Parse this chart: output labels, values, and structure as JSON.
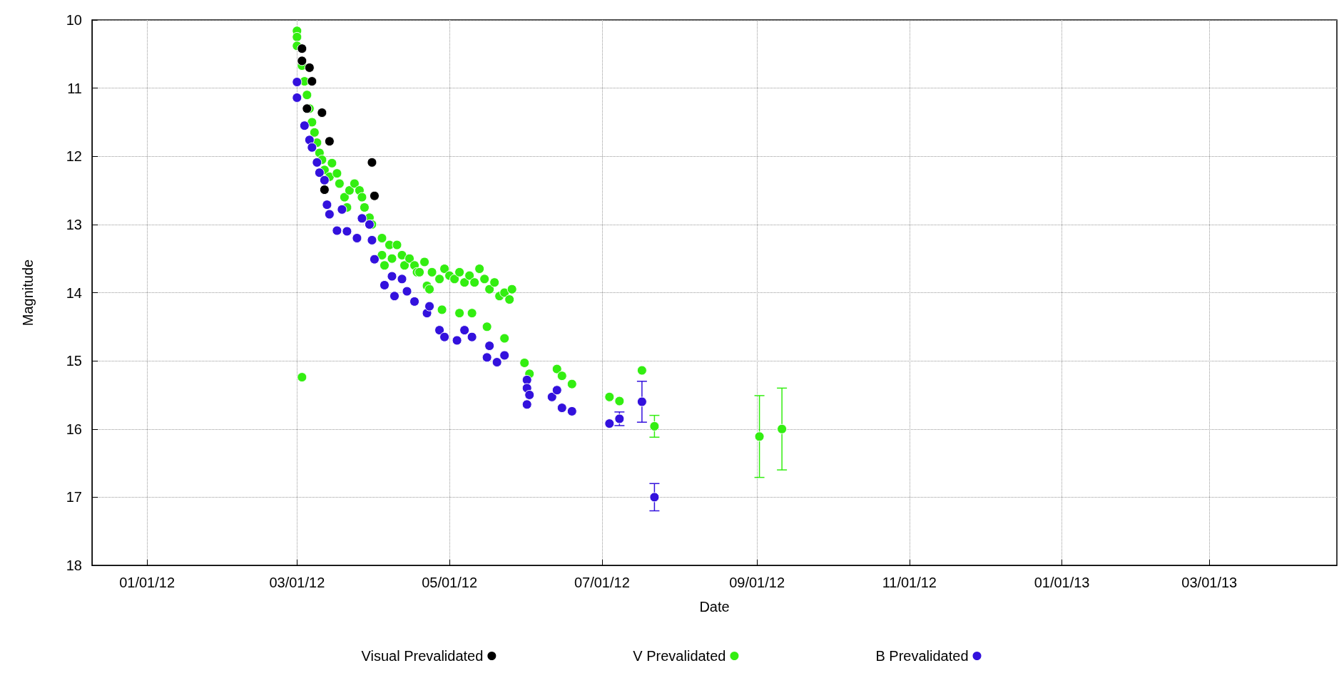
{
  "chart_data": {
    "type": "scatter",
    "xlabel": "Date",
    "ylabel": "Magnitude",
    "xlim": [
      "2011-12-10",
      "2013-04-21"
    ],
    "xticks": [
      {
        "value": "2012-01-01",
        "label": "01/01/12"
      },
      {
        "value": "2012-03-01",
        "label": "03/01/12"
      },
      {
        "value": "2012-05-01",
        "label": "05/01/12"
      },
      {
        "value": "2012-07-01",
        "label": "07/01/12"
      },
      {
        "value": "2012-09-01",
        "label": "09/01/12"
      },
      {
        "value": "2012-11-01",
        "label": "11/01/12"
      },
      {
        "value": "2013-01-01",
        "label": "01/01/13"
      },
      {
        "value": "2013-03-01",
        "label": "03/01/13"
      }
    ],
    "ylim": [
      18,
      10
    ],
    "yticks": [
      10,
      11,
      12,
      13,
      14,
      15,
      16,
      17,
      18
    ],
    "grid": true,
    "legend": "bottom",
    "marker": "circle",
    "series": [
      {
        "name": "Visual Prevalidated",
        "color": "#000000",
        "x": [
          "2012-03-03",
          "2012-03-03",
          "2012-03-06",
          "2012-03-07",
          "2012-03-05",
          "2012-03-11",
          "2012-03-14",
          "2012-03-12",
          "2012-03-30",
          "2012-03-31",
          "2012-04-01"
        ],
        "values": [
          10.42,
          10.6,
          10.7,
          10.9,
          11.3,
          11.36,
          11.78,
          12.49,
          null,
          12.09,
          12.58
        ]
      },
      {
        "name": "V Prevalidated",
        "color": "#33ee11",
        "x": [
          "2012-03-01",
          "2012-03-01",
          "2012-03-01",
          "2012-03-03",
          "2012-03-04",
          "2012-03-05",
          "2012-03-06",
          "2012-03-07",
          "2012-03-08",
          "2012-03-09",
          "2012-03-10",
          "2012-03-11",
          "2012-03-12",
          "2012-03-14",
          "2012-03-15",
          "2012-03-17",
          "2012-03-18",
          "2012-03-20",
          "2012-03-21",
          "2012-03-22",
          "2012-03-24",
          "2012-03-26",
          "2012-03-27",
          "2012-03-28",
          "2012-03-30",
          "2012-03-31",
          "2012-04-04",
          "2012-04-04",
          "2012-04-05",
          "2012-04-07",
          "2012-04-08",
          "2012-04-10",
          "2012-04-12",
          "2012-04-13",
          "2012-04-15",
          "2012-04-17",
          "2012-04-18",
          "2012-04-19",
          "2012-04-21",
          "2012-04-22",
          "2012-04-23",
          "2012-04-24",
          "2012-04-27",
          "2012-04-29",
          "2012-05-01",
          "2012-05-03",
          "2012-05-05",
          "2012-05-07",
          "2012-05-09",
          "2012-05-11",
          "2012-05-13",
          "2012-05-15",
          "2012-05-17",
          "2012-05-19",
          "2012-05-21",
          "2012-05-23",
          "2012-05-25",
          "2012-05-26",
          "2012-04-28",
          "2012-05-05",
          "2012-05-10",
          "2012-05-16",
          "2012-05-23",
          "2012-05-31",
          "2012-06-02",
          "2012-06-13",
          "2012-06-15",
          "2012-06-19",
          "2012-07-04",
          "2012-07-08",
          "2012-07-17",
          "2012-07-22",
          "2012-09-02",
          "2012-09-11",
          "2012-03-03"
        ],
        "values": [
          10.16,
          10.25,
          10.38,
          10.67,
          10.9,
          11.1,
          11.3,
          11.5,
          11.65,
          11.8,
          11.95,
          12.05,
          12.2,
          12.3,
          12.1,
          12.25,
          12.4,
          12.6,
          12.75,
          12.5,
          12.4,
          12.5,
          12.6,
          12.75,
          12.9,
          13.0,
          13.2,
          13.45,
          13.6,
          13.3,
          13.5,
          13.3,
          13.45,
          13.6,
          13.5,
          13.6,
          13.7,
          13.7,
          13.55,
          13.9,
          13.95,
          13.7,
          13.8,
          13.65,
          13.75,
          13.8,
          13.7,
          13.85,
          13.75,
          13.85,
          13.65,
          13.8,
          13.95,
          13.85,
          14.05,
          14.0,
          14.1,
          13.95,
          14.25,
          14.3,
          14.3,
          14.5,
          14.67,
          15.03,
          15.19,
          15.12,
          15.22,
          15.34,
          15.53,
          15.59,
          15.14,
          15.96,
          16.11,
          16.0,
          15.24
        ],
        "errors": [
          null,
          null,
          null,
          null,
          null,
          null,
          null,
          null,
          null,
          null,
          null,
          null,
          null,
          null,
          null,
          null,
          null,
          null,
          null,
          null,
          null,
          null,
          null,
          null,
          null,
          null,
          null,
          null,
          null,
          null,
          null,
          null,
          null,
          null,
          null,
          null,
          null,
          null,
          null,
          null,
          null,
          null,
          null,
          null,
          null,
          null,
          null,
          null,
          null,
          null,
          null,
          null,
          null,
          null,
          null,
          null,
          null,
          null,
          null,
          null,
          null,
          null,
          null,
          null,
          null,
          null,
          null,
          null,
          null,
          null,
          null,
          0.16,
          0.6,
          0.6,
          null
        ]
      },
      {
        "name": "B Prevalidated",
        "color": "#3311dd",
        "x": [
          "2012-03-01",
          "2012-03-01",
          "2012-03-04",
          "2012-03-06",
          "2012-03-07",
          "2012-03-09",
          "2012-03-10",
          "2012-03-12",
          "2012-03-13",
          "2012-03-14",
          "2012-03-19",
          "2012-03-17",
          "2012-03-21",
          "2012-03-25",
          "2012-03-27",
          "2012-03-30",
          "2012-03-31",
          "2012-04-01",
          "2012-04-05",
          "2012-04-08",
          "2012-04-09",
          "2012-04-12",
          "2012-04-14",
          "2012-04-17",
          "2012-04-22",
          "2012-04-23",
          "2012-04-27",
          "2012-04-29",
          "2012-05-04",
          "2012-05-07",
          "2012-05-10",
          "2012-05-17",
          "2012-05-16",
          "2012-05-20",
          "2012-05-23",
          "2012-06-01",
          "2012-06-01",
          "2012-06-02",
          "2012-06-01",
          "2012-06-11",
          "2012-06-13",
          "2012-06-15",
          "2012-06-19",
          "2012-07-04",
          "2012-07-08",
          "2012-07-17",
          "2012-07-22"
        ],
        "values": [
          10.91,
          11.14,
          11.55,
          11.76,
          11.87,
          12.09,
          12.24,
          12.35,
          12.71,
          12.85,
          12.78,
          13.09,
          13.1,
          13.2,
          12.91,
          13.0,
          13.23,
          13.51,
          13.89,
          13.76,
          14.05,
          13.8,
          13.98,
          14.13,
          14.3,
          14.2,
          14.55,
          14.65,
          14.7,
          14.55,
          14.65,
          14.78,
          14.95,
          15.02,
          14.92,
          15.28,
          15.4,
          15.5,
          15.64,
          15.53,
          15.43,
          15.69,
          15.74,
          15.92,
          15.85,
          15.6,
          17.0
        ],
        "errors": [
          null,
          null,
          null,
          null,
          null,
          null,
          null,
          null,
          null,
          null,
          null,
          null,
          null,
          null,
          null,
          null,
          null,
          null,
          null,
          null,
          null,
          null,
          null,
          null,
          null,
          null,
          null,
          null,
          null,
          null,
          null,
          null,
          null,
          null,
          null,
          null,
          null,
          null,
          null,
          null,
          null,
          null,
          null,
          null,
          0.1,
          0.3,
          0.2
        ]
      }
    ]
  }
}
